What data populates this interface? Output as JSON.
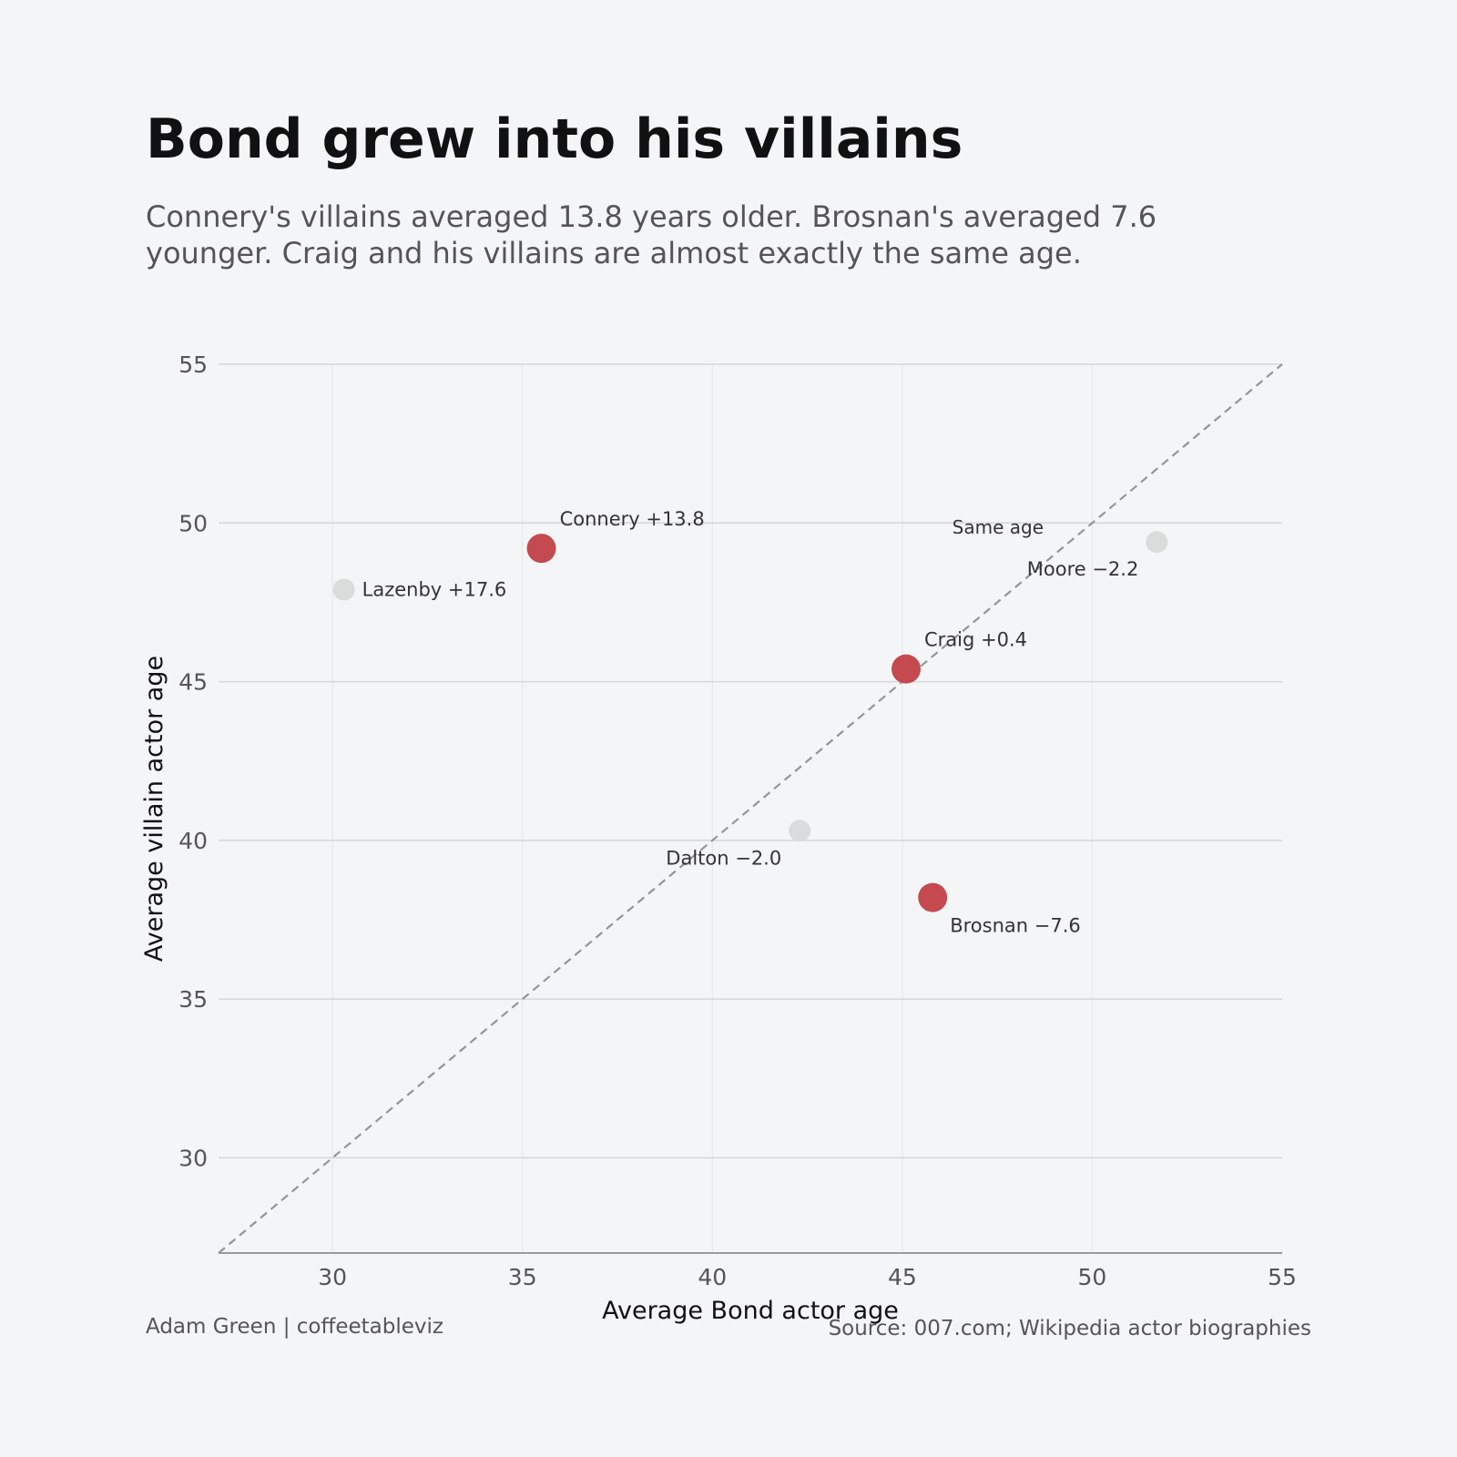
{
  "title": "Bond grew into his villains",
  "subtitle": "Connery's villains averaged 13.8 years older. Brosnan's averaged 7.6 younger. Craig and his villains are almost exactly the same age.",
  "footer": {
    "credit": "Adam Green | coffeetableviz",
    "source": "Source: 007.com; Wikipedia actor biographies"
  },
  "colors": {
    "background": "#f4f5f7",
    "highlight": "#c44a50",
    "muted": "#dadbdb",
    "reference_line": "#959595",
    "grid": "#d5d6d8"
  },
  "chart_data": {
    "type": "scatter",
    "xlabel": "Average Bond actor age",
    "ylabel": "Average villain actor age",
    "xlim": [
      27,
      55
    ],
    "ylim": [
      27,
      55
    ],
    "xticks": [
      30,
      35,
      40,
      45,
      50,
      55
    ],
    "yticks": [
      30,
      35,
      40,
      45,
      50,
      55
    ],
    "grid": true,
    "reference_line": {
      "label": "Same age",
      "from": [
        27,
        27
      ],
      "to": [
        55,
        55
      ]
    },
    "points": [
      {
        "actor": "Connery",
        "x": 35.5,
        "y": 49.2,
        "label": "Connery +13.8",
        "highlight": true,
        "label_pos": "upper-right"
      },
      {
        "actor": "Lazenby",
        "x": 30.3,
        "y": 47.9,
        "label": "Lazenby +17.6",
        "highlight": false,
        "label_pos": "right"
      },
      {
        "actor": "Moore",
        "x": 51.7,
        "y": 49.4,
        "label": "Moore −2.2",
        "highlight": false,
        "label_pos": "lower-left"
      },
      {
        "actor": "Craig",
        "x": 45.1,
        "y": 45.4,
        "label": "Craig +0.4",
        "highlight": true,
        "label_pos": "upper-right"
      },
      {
        "actor": "Dalton",
        "x": 42.3,
        "y": 40.3,
        "label": "Dalton −2.0",
        "highlight": false,
        "label_pos": "lower-left"
      },
      {
        "actor": "Brosnan",
        "x": 45.8,
        "y": 38.2,
        "label": "Brosnan −7.6",
        "highlight": true,
        "label_pos": "lower-right"
      }
    ]
  }
}
